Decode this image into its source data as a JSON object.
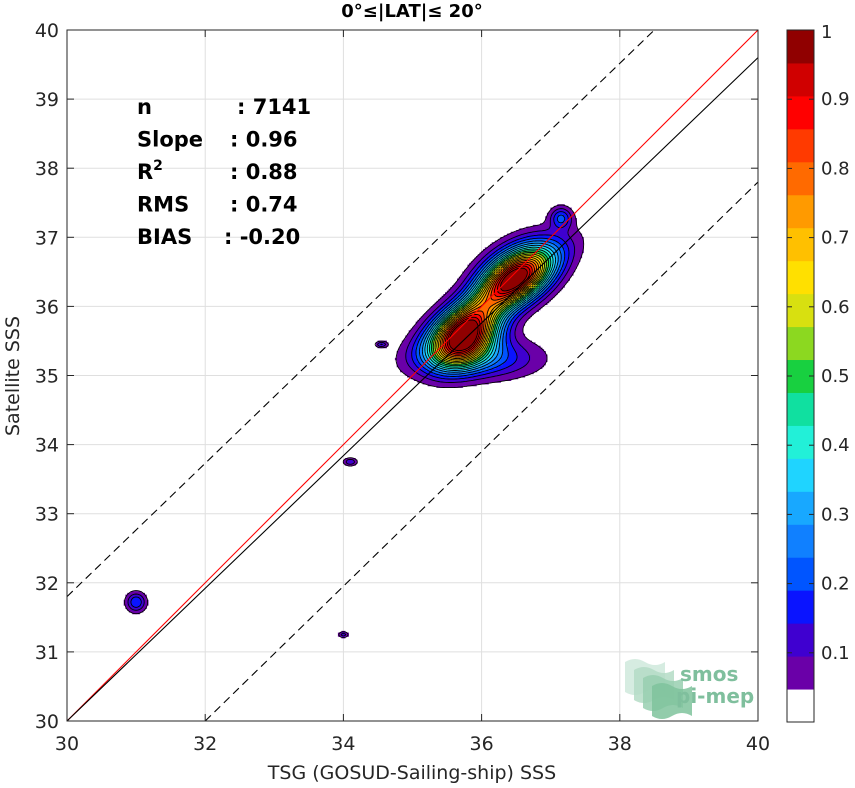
{
  "chart_data": {
    "type": "contour",
    "title": "0°≤|LAT|≤ 20°",
    "xlabel": "TSG (GOSUD-Sailing-ship) SSS",
    "ylabel": "Satellite SSS",
    "xlim": [
      30,
      40
    ],
    "ylim": [
      30,
      40
    ],
    "xticks": [
      30,
      32,
      34,
      36,
      38,
      40
    ],
    "yticks": [
      30,
      31,
      32,
      33,
      34,
      35,
      36,
      37,
      38,
      39,
      40
    ],
    "grid": true,
    "stats": [
      {
        "key": "n",
        "value": ": 7141"
      },
      {
        "key": "Slope",
        "value": ": 0.96"
      },
      {
        "key": "R",
        "sup": "2",
        "value": ": 0.88"
      },
      {
        "key": "RMS",
        "value": ": 0.74"
      },
      {
        "key": "BIAS",
        "value": ": -0.20"
      }
    ],
    "lines": [
      {
        "name": "identity",
        "color": "#ff0000",
        "points": [
          [
            30,
            30
          ],
          [
            40,
            40
          ]
        ]
      },
      {
        "name": "regression",
        "color": "#000000",
        "points": [
          [
            30,
            30
          ],
          [
            40,
            39.6
          ]
        ]
      },
      {
        "name": "upper bound",
        "color": "#000000",
        "dashed": true,
        "points": [
          [
            30,
            31.8
          ],
          [
            38.5,
            40
          ]
        ]
      },
      {
        "name": "lower bound",
        "color": "#000000",
        "dashed": true,
        "points": [
          [
            32,
            30
          ],
          [
            40,
            37.8
          ]
        ]
      }
    ],
    "density_peaks": [
      {
        "x": 35.75,
        "y": 35.55,
        "sx": 0.32,
        "sy": 0.28,
        "peak": 1.0,
        "rho": 0.35
      },
      {
        "x": 36.5,
        "y": 36.45,
        "sx": 0.36,
        "sy": 0.3,
        "peak": 0.85,
        "rho": 0.45
      },
      {
        "x": 36.15,
        "y": 36.1,
        "sx": 0.6,
        "sy": 0.45,
        "peak": 0.35,
        "rho": 0.85
      },
      {
        "x": 36.0,
        "y": 35.25,
        "sx": 0.55,
        "sy": 0.2,
        "peak": 0.22,
        "rho": 0.0
      },
      {
        "x": 37.15,
        "y": 37.28,
        "sx": 0.11,
        "sy": 0.11,
        "peak": 0.2,
        "rho": 0.0
      },
      {
        "x": 31.0,
        "y": 31.72,
        "sx": 0.1,
        "sy": 0.1,
        "peak": 0.2,
        "rho": 0.0
      },
      {
        "x": 34.55,
        "y": 35.45,
        "sx": 0.06,
        "sy": 0.03,
        "peak": 0.15,
        "rho": 0.0
      },
      {
        "x": 34.1,
        "y": 33.75,
        "sx": 0.07,
        "sy": 0.04,
        "peak": 0.15,
        "rho": 0.0
      },
      {
        "x": 34.0,
        "y": 31.25,
        "sx": 0.05,
        "sy": 0.03,
        "peak": 0.13,
        "rho": 0.0
      }
    ],
    "colorbar": {
      "range": [
        0,
        1
      ],
      "ticks": [
        0.1,
        0.2,
        0.3,
        0.4,
        0.5,
        0.6,
        0.7,
        0.8,
        0.9,
        1
      ],
      "tick_labels": [
        "0.1",
        "0.2",
        "0.3",
        "0.4",
        "0.5",
        "0.6",
        "0.7",
        "0.8",
        "0.9",
        "1"
      ],
      "colors": [
        "#ffffff",
        "#6a00a8",
        "#3f00d0",
        "#0a14ff",
        "#0055ff",
        "#1080ff",
        "#18a8ff",
        "#1fd4ff",
        "#22f0d8",
        "#10e0a0",
        "#18d040",
        "#8cd820",
        "#d8e010",
        "#ffe000",
        "#ffc000",
        "#ff9a00",
        "#ff6a00",
        "#ff3a00",
        "#ff0000",
        "#d00000",
        "#900000"
      ]
    }
  },
  "logo": {
    "line1": "smos",
    "line2": "pi-mep"
  }
}
